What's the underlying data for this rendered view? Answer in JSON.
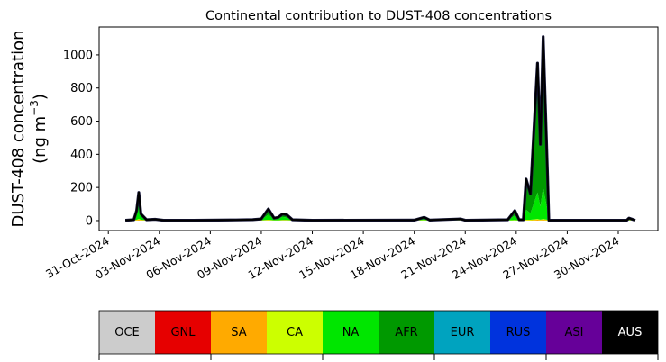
{
  "chart_data": {
    "type": "area",
    "stacked": true,
    "title": "Continental contribution to DUST-408 concentrations",
    "ylabel_line1": "DUST-408 concentration",
    "ylabel_line2": "(ng m",
    "ylabel_sup": "−3",
    "ylabel_close": ")",
    "xlim": [
      "2024-10-30T11:00",
      "2024-12-02T08:00"
    ],
    "ylim": [
      -60,
      1168
    ],
    "yticks": [
      0,
      200,
      400,
      600,
      800,
      1000
    ],
    "xticks": [
      "2024-10-31",
      "2024-11-03",
      "2024-11-06",
      "2024-11-09",
      "2024-11-12",
      "2024-11-15",
      "2024-11-18",
      "2024-11-21",
      "2024-11-24",
      "2024-11-27",
      "2024-11-30"
    ],
    "xtick_labels": [
      "31-Oct-2024",
      "03-Nov-2024",
      "06-Nov-2024",
      "09-Nov-2024",
      "12-Nov-2024",
      "15-Nov-2024",
      "18-Nov-2024",
      "21-Nov-2024",
      "24-Nov-2024",
      "27-Nov-2024",
      "30-Nov-2024"
    ],
    "x": [
      "2024-11-01T00:00",
      "2024-11-01T12:00",
      "2024-11-01T16:00",
      "2024-11-01T19:00",
      "2024-11-01T22:00",
      "2024-11-02T06:00",
      "2024-11-02T18:00",
      "2024-11-03T06:00",
      "2024-11-05T00:00",
      "2024-11-07T12:00",
      "2024-11-08T12:00",
      "2024-11-09T00:00",
      "2024-11-09T10:00",
      "2024-11-09T18:00",
      "2024-11-10T00:00",
      "2024-11-10T06:00",
      "2024-11-10T12:00",
      "2024-11-10T20:00",
      "2024-11-12T00:00",
      "2024-11-18T00:00",
      "2024-11-18T14:00",
      "2024-11-18T22:00",
      "2024-11-20T17:00",
      "2024-11-21T00:00",
      "2024-11-23T12:00",
      "2024-11-23T22:00",
      "2024-11-24T04:00",
      "2024-11-24T10:00",
      "2024-11-24T14:00",
      "2024-11-24T20:00",
      "2024-11-25T06:00",
      "2024-11-25T10:00",
      "2024-11-25T14:00",
      "2024-11-25T20:00",
      "2024-11-25T22:00",
      "2024-11-30T12:00",
      "2024-11-30T15:00",
      "2024-12-01T00:00"
    ],
    "series": [
      {
        "name": "SA",
        "color": "#ffaa00",
        "values": [
          0,
          1,
          3,
          5,
          3,
          1,
          2,
          0,
          0,
          1,
          1,
          1,
          2,
          1,
          1,
          2,
          2,
          1,
          0,
          0,
          1,
          0,
          1,
          0,
          0,
          1,
          0,
          0,
          2,
          2,
          5,
          3,
          5,
          2,
          0,
          0,
          1,
          0
        ]
      },
      {
        "name": "CA",
        "color": "#ccff00",
        "values": [
          0,
          1,
          2,
          5,
          2,
          1,
          2,
          0,
          0,
          1,
          1,
          1,
          3,
          1,
          1,
          2,
          2,
          1,
          0,
          1,
          2,
          0,
          1,
          0,
          1,
          2,
          1,
          1,
          3,
          3,
          5,
          3,
          5,
          3,
          0,
          0,
          2,
          0
        ]
      },
      {
        "name": "NA",
        "color": "#00e600",
        "values": [
          2,
          3,
          45,
          120,
          30,
          3,
          4,
          2,
          2,
          2,
          3,
          5,
          30,
          8,
          10,
          18,
          15,
          3,
          2,
          2,
          10,
          3,
          5,
          2,
          4,
          27,
          4,
          4,
          60,
          40,
          160,
          80,
          190,
          60,
          2,
          2,
          8,
          2
        ]
      },
      {
        "name": "AFR",
        "color": "#009900",
        "values": [
          0,
          0,
          10,
          35,
          5,
          0,
          0,
          0,
          0,
          0,
          1,
          3,
          30,
          5,
          8,
          18,
          16,
          0,
          0,
          0,
          7,
          0,
          3,
          0,
          0,
          25,
          0,
          0,
          170,
          105,
          740,
          360,
          880,
          220,
          0,
          0,
          4,
          0
        ]
      },
      {
        "name": "RUS",
        "color": "#0033dd",
        "values": [
          0,
          0,
          0,
          5,
          0,
          0,
          0,
          0,
          0,
          0,
          0,
          0,
          5,
          0,
          0,
          0,
          0,
          0,
          0,
          0,
          0,
          0,
          0,
          0,
          0,
          5,
          0,
          0,
          15,
          10,
          40,
          14,
          30,
          15,
          0,
          0,
          0,
          0
        ]
      }
    ],
    "outline_color": "#000000",
    "grid": false,
    "legend": {
      "placement": "bottom",
      "entries": [
        {
          "label": "OCE",
          "color": "#cccccc",
          "text_color": "#000000"
        },
        {
          "label": "GNL",
          "color": "#e60000",
          "text_color": "#000000"
        },
        {
          "label": "SA",
          "color": "#ffaa00",
          "text_color": "#000000"
        },
        {
          "label": "CA",
          "color": "#ccff00",
          "text_color": "#000000"
        },
        {
          "label": "NA",
          "color": "#00e600",
          "text_color": "#000000"
        },
        {
          "label": "AFR",
          "color": "#009900",
          "text_color": "#000000"
        },
        {
          "label": "EUR",
          "color": "#00a3bf",
          "text_color": "#000000"
        },
        {
          "label": "RUS",
          "color": "#0033dd",
          "text_color": "#000000"
        },
        {
          "label": "ASI",
          "color": "#660099",
          "text_color": "#000000"
        },
        {
          "label": "AUS",
          "color": "#000000",
          "text_color": "#ffffff"
        }
      ]
    }
  }
}
